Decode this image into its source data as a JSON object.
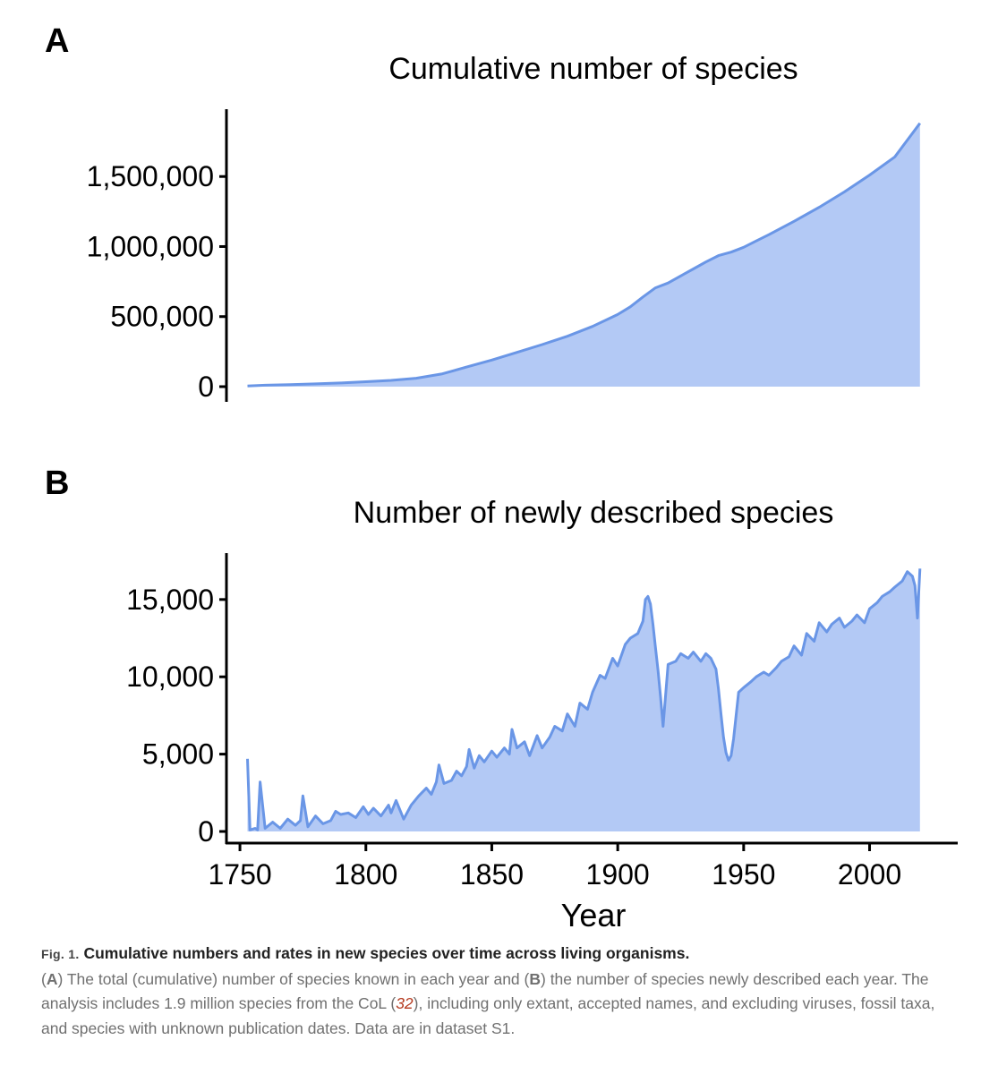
{
  "figure": {
    "panel_a_letter": "A",
    "panel_b_letter": "B"
  },
  "chart_data": [
    {
      "panel": "A",
      "type": "area",
      "title": "Cumulative number of species",
      "xlabel": "",
      "ylabel": "",
      "xlim": [
        1745,
        2035
      ],
      "ylim": [
        0,
        1900000
      ],
      "yticks": [
        0,
        500000,
        1000000,
        1500000
      ],
      "ytick_labels": [
        "0",
        "500,000",
        "1,000,000",
        "1,500,000"
      ],
      "line_color": "#6a96e6",
      "fill_color": "#b3c9f5",
      "x": [
        1753,
        1760,
        1770,
        1780,
        1790,
        1800,
        1810,
        1820,
        1830,
        1840,
        1850,
        1860,
        1870,
        1880,
        1890,
        1900,
        1905,
        1910,
        1915,
        1920,
        1925,
        1930,
        1935,
        1940,
        1945,
        1950,
        1955,
        1960,
        1970,
        1980,
        1990,
        2000,
        2010,
        2020
      ],
      "y": [
        5000,
        10000,
        14000,
        20000,
        26000,
        35000,
        45000,
        60000,
        90000,
        140000,
        190000,
        245000,
        300000,
        360000,
        430000,
        515000,
        570000,
        640000,
        705000,
        740000,
        790000,
        840000,
        890000,
        935000,
        960000,
        995000,
        1040000,
        1085000,
        1180000,
        1280000,
        1390000,
        1510000,
        1640000,
        1880000
      ]
    },
    {
      "panel": "B",
      "type": "area",
      "title": "Number of newly described species",
      "xlabel": "Year",
      "ylabel": "",
      "xlim": [
        1745,
        2035
      ],
      "ylim": [
        0,
        18000
      ],
      "xticks": [
        1750,
        1800,
        1850,
        1900,
        1950,
        2000
      ],
      "xtick_labels": [
        "1750",
        "1800",
        "1850",
        "1900",
        "1950",
        "2000"
      ],
      "yticks": [
        0,
        5000,
        10000,
        15000
      ],
      "ytick_labels": [
        "0",
        "5,000",
        "10,000",
        "15,000"
      ],
      "line_color": "#6a96e6",
      "fill_color": "#b3c9f5",
      "x": [
        1753,
        1754,
        1756,
        1757,
        1758,
        1760,
        1763,
        1766,
        1769,
        1772,
        1774,
        1775,
        1777,
        1780,
        1783,
        1786,
        1788,
        1790,
        1793,
        1796,
        1799,
        1801,
        1803,
        1806,
        1809,
        1810,
        1812,
        1815,
        1818,
        1821,
        1824,
        1826,
        1828,
        1829,
        1831,
        1834,
        1836,
        1838,
        1840,
        1841,
        1843,
        1845,
        1847,
        1850,
        1852,
        1855,
        1857,
        1858,
        1860,
        1863,
        1865,
        1868,
        1870,
        1873,
        1875,
        1878,
        1880,
        1883,
        1885,
        1888,
        1890,
        1893,
        1895,
        1898,
        1900,
        1903,
        1905,
        1908,
        1910,
        1911,
        1912,
        1913,
        1914,
        1915,
        1916,
        1917,
        1918,
        1920,
        1923,
        1925,
        1928,
        1930,
        1933,
        1935,
        1937,
        1939,
        1940,
        1941,
        1942,
        1943,
        1944,
        1945,
        1946,
        1947,
        1948,
        1950,
        1953,
        1955,
        1958,
        1960,
        1963,
        1965,
        1968,
        1970,
        1973,
        1975,
        1978,
        1980,
        1983,
        1985,
        1988,
        1990,
        1993,
        1995,
        1998,
        2000,
        2003,
        2005,
        2008,
        2010,
        2013,
        2015,
        2017,
        2018,
        2019,
        2020
      ],
      "y": [
        4700,
        100,
        200,
        100,
        3200,
        200,
        600,
        200,
        800,
        400,
        700,
        2300,
        300,
        1000,
        500,
        700,
        1300,
        1100,
        1200,
        900,
        1600,
        1100,
        1500,
        1000,
        1700,
        1200,
        2000,
        800,
        1700,
        2300,
        2800,
        2400,
        3200,
        4300,
        3100,
        3300,
        3900,
        3600,
        4200,
        5300,
        4100,
        4900,
        4500,
        5200,
        4800,
        5400,
        5000,
        6600,
        5400,
        5800,
        4900,
        6200,
        5400,
        6100,
        6800,
        6500,
        7600,
        6800,
        8300,
        7900,
        9000,
        10100,
        9900,
        11200,
        10700,
        12100,
        12500,
        12800,
        13600,
        15000,
        15200,
        14700,
        13400,
        11900,
        10400,
        8700,
        6800,
        10800,
        11000,
        11500,
        11200,
        11600,
        11000,
        11500,
        11200,
        10500,
        9200,
        7600,
        6100,
        5100,
        4600,
        4900,
        6000,
        7500,
        9000,
        9300,
        9700,
        10000,
        10300,
        10100,
        10600,
        11000,
        11300,
        12000,
        11400,
        12800,
        12300,
        13500,
        12900,
        13400,
        13800,
        13200,
        13600,
        14000,
        13500,
        14400,
        14800,
        15200,
        15500,
        15800,
        16200,
        16800,
        16500,
        15900,
        13800,
        17000
      ]
    }
  ],
  "caption": {
    "label": "Fig. 1.",
    "title": "Cumulative numbers and rates in new species over time across living organisms.",
    "p1": "(",
    "a_letter": "A",
    "p2": ") The total (cumulative) number of species known in each year and (",
    "b_letter": "B",
    "p3": ") the number of species newly described each year. The analysis includes 1.9 million species from the CoL (",
    "ref": "32",
    "p4": "), including only extant, accepted names, and excluding viruses, fossil taxa, and species with unknown publication dates. Data are in dataset S1."
  }
}
